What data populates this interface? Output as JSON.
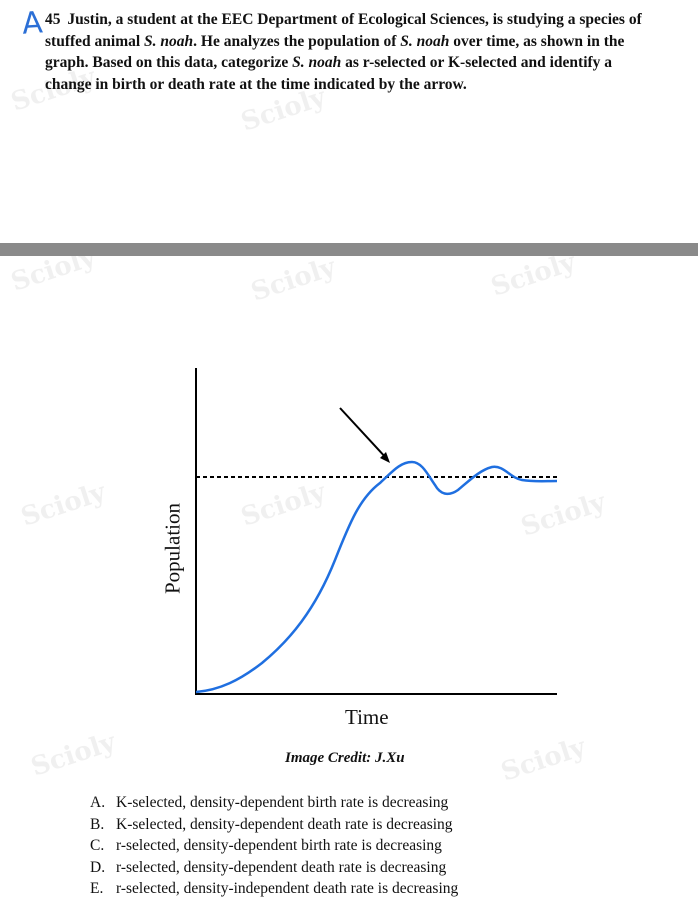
{
  "question": {
    "annotation": "A",
    "number": "45",
    "text_part1": "Justin, a student at the EEC Department of Ecological Sciences, is studying a species of stuffed animal ",
    "species1": "S. noah",
    "text_part2": ". He analyzes the population of ",
    "species2": "S. noah",
    "text_part3": " over time, as shown in the graph. Based on this data, categorize ",
    "species3": "S. noah",
    "text_part4": " as r-selected or K-selected and identify a change in birth or death rate at the time indicated by the arrow."
  },
  "graph": {
    "ylabel": "Population",
    "xlabel": "Time",
    "credit": "Image Credit: J.Xu",
    "curve_color": "#1f6fe0",
    "carrying_capacity_line": "dashed"
  },
  "options": [
    {
      "letter": "A.",
      "text": "K-selected, density-dependent birth rate is decreasing"
    },
    {
      "letter": "B.",
      "text": "K-selected, density-dependent death rate is decreasing"
    },
    {
      "letter": "C.",
      "text": "r-selected, density-dependent birth rate is decreasing"
    },
    {
      "letter": "D.",
      "text": "r-selected, density-dependent death rate is decreasing"
    },
    {
      "letter": "E.",
      "text": "r-selected, density-independent death rate is decreasing"
    }
  ],
  "watermark": "Scioly"
}
